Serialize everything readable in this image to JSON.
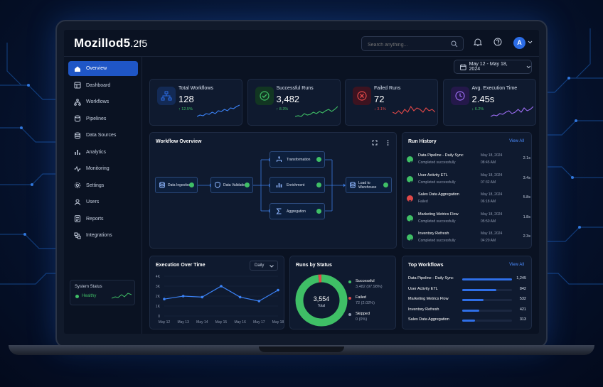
{
  "app": {
    "logo_main": "Mozillod5",
    "logo_sub": ".2f5",
    "avatar": "A"
  },
  "search": {
    "placeholder": "Search anything..."
  },
  "date_range": "May 12 - May 18, 2024",
  "sidebar": {
    "items": [
      {
        "label": "Overview",
        "icon": "home-icon",
        "active": true
      },
      {
        "label": "Dashboard",
        "icon": "dashboard-icon"
      },
      {
        "label": "Workflows",
        "icon": "workflow-icon"
      },
      {
        "label": "Pipelines",
        "icon": "pipeline-icon"
      },
      {
        "label": "Data Sources",
        "icon": "database-icon"
      },
      {
        "label": "Analytics",
        "icon": "analytics-icon"
      },
      {
        "label": "Monitoring",
        "icon": "monitoring-icon"
      },
      {
        "label": "Settings",
        "icon": "gear-icon"
      },
      {
        "label": "Users",
        "icon": "user-icon"
      },
      {
        "label": "Reports",
        "icon": "report-icon"
      },
      {
        "label": "Integrations",
        "icon": "integration-icon"
      }
    ],
    "system_status": {
      "title": "System Status",
      "value": "Healthy"
    }
  },
  "stats": [
    {
      "label": "Total Workflows",
      "value": "128",
      "change": "↑ 12.5%",
      "color": "#3fbf66",
      "icon_color": "#2b6ce6",
      "icon_bg": "#132a55"
    },
    {
      "label": "Successful Runs",
      "value": "3,482",
      "change": "↑ 8.3%",
      "color": "#3fbf66",
      "icon_color": "#3fbf66",
      "icon_bg": "#123622"
    },
    {
      "label": "Failed Runs",
      "value": "72",
      "change": "↓ 3.1%",
      "color": "#e04848",
      "icon_color": "#e04848",
      "icon_bg": "#3d1320"
    },
    {
      "label": "Avg. Execution Time",
      "value": "2.45s",
      "change": "↓ 6.2%",
      "color": "#3fbf66",
      "icon_color": "#9a6cf0",
      "icon_bg": "#24184a"
    }
  ],
  "workflow": {
    "title": "Workflow Overview",
    "nodes": [
      "Data Ingestion",
      "Data Validation",
      "Transformation",
      "Enrichment",
      "Aggregation",
      "Load to Warehouse"
    ]
  },
  "run_history": {
    "title": "Run History",
    "view_all": "View All",
    "runs": [
      {
        "name": "Data Pipeline - Daily Sync",
        "status": "Completed successfully",
        "date": "May 18, 2024",
        "time": "08:45 AM",
        "duration": "2.1s",
        "ok": true
      },
      {
        "name": "User Activity ETL",
        "status": "Completed successfully",
        "date": "May 18, 2024",
        "time": "07:32 AM",
        "duration": "3.4s",
        "ok": true
      },
      {
        "name": "Sales Data Aggregation",
        "status": "Failed",
        "date": "May 18, 2024",
        "time": "06:18 AM",
        "duration": "5.8s",
        "ok": false
      },
      {
        "name": "Marketing Metrics Flow",
        "status": "Completed successfully",
        "date": "May 18, 2024",
        "time": "05:50 AM",
        "duration": "1.8s",
        "ok": true
      },
      {
        "name": "Inventory Refresh",
        "status": "Completed successfully",
        "date": "May 18, 2024",
        "time": "04:20 AM",
        "duration": "2.3s",
        "ok": true
      }
    ]
  },
  "execution": {
    "title": "Execution Over Time",
    "period": "Daily",
    "chart_data": {
      "type": "line",
      "title": "Execution Over Time",
      "categories": [
        "May 12",
        "May 13",
        "May 14",
        "May 15",
        "May 16",
        "May 17",
        "May 18"
      ],
      "values": [
        1700,
        2000,
        1900,
        3000,
        1900,
        1500,
        2600
      ],
      "yticks": [
        "0",
        "1K",
        "2K",
        "3K",
        "4K"
      ],
      "ylim": [
        0,
        4000
      ],
      "grid": true,
      "color": "#3b82f6"
    }
  },
  "runs_status": {
    "title": "Runs by Status",
    "total": "3,554",
    "total_label": "Total",
    "chart_data": {
      "type": "pie",
      "donut": true,
      "labels": [
        "Successful",
        "Failed",
        "Skipped"
      ],
      "values": [
        3482,
        72,
        0
      ],
      "display": [
        "3,482 (97.98%)",
        "72 (2.02%)",
        "0 (0%)"
      ],
      "colors": [
        "#3fbf66",
        "#e04848",
        "#8f9ab0"
      ]
    }
  },
  "top_workflows": {
    "title": "Top Workflows",
    "view_all": "View All",
    "items": [
      {
        "name": "Data Pipeline - Daily Sync",
        "value": "1,245",
        "pct": 100
      },
      {
        "name": "User Activity ETL",
        "value": "842",
        "pct": 68
      },
      {
        "name": "Marketing Metrics Flow",
        "value": "532",
        "pct": 43
      },
      {
        "name": "Inventory Refresh",
        "value": "421",
        "pct": 34
      },
      {
        "name": "Sales Data Aggregation",
        "value": "313",
        "pct": 25
      }
    ]
  }
}
